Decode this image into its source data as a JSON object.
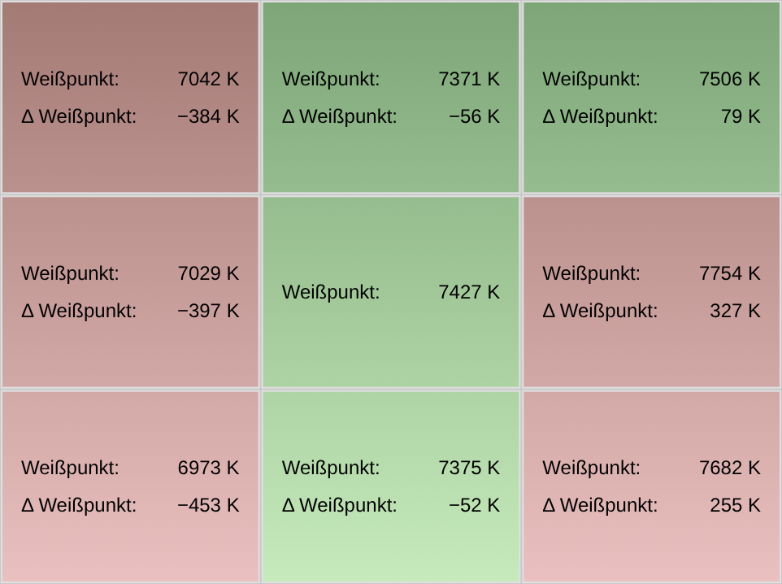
{
  "chart_data": {
    "type": "heatmap",
    "categories": [
      null,
      null,
      null
    ],
    "y_categories": [
      null,
      null,
      null
    ],
    "cells": [
      [
        7042,
        7371,
        7506
      ],
      [
        7029,
        7427,
        7754
      ],
      [
        6973,
        7375,
        7682
      ]
    ],
    "cell_labels": [
      [
        "7042 K",
        "7371 K",
        "7506 K"
      ],
      [
        "7029 K",
        "7427 K",
        "7754 K"
      ],
      [
        "6973 K",
        "7375 K",
        "7682 K"
      ]
    ],
    "annotations": [
      "Weißpunkt:",
      "Δ Weißpunkt: −384 K",
      "Δ Weißpunkt: −56 K",
      "Δ Weißpunkt: 79 K",
      "Δ Weißpunkt: −397 K",
      "Δ Weißpunkt: 327 K",
      "Δ Weißpunkt: −453 K",
      "Δ Weißpunkt: −52 K",
      "Δ Weißpunkt: 255 K"
    ]
  }
}
